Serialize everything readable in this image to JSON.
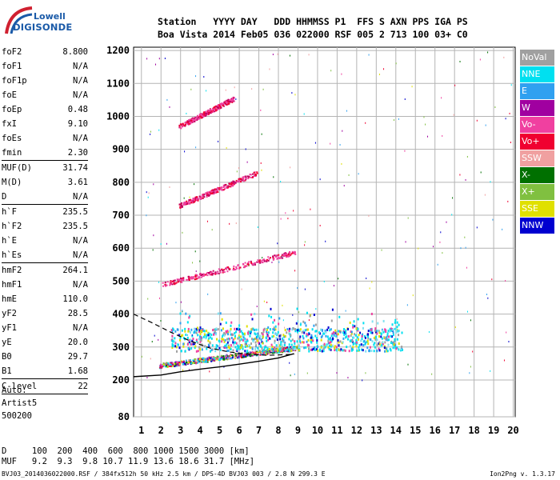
{
  "logo": {
    "line1": "Lowell",
    "line2": "DIGISONDE"
  },
  "header": {
    "line1": "Station   YYYY DAY   DDD HHMMSS P1  FFS S AXN PPS IGA PS",
    "line2": "Boa Vista 2014 Feb05 036 022000 RSF 005 2 713 100 03+ C0"
  },
  "params": [
    {
      "k": "foF2",
      "v": "8.800"
    },
    {
      "k": "foF1",
      "v": "N/A"
    },
    {
      "k": "foF1p",
      "v": "N/A"
    },
    {
      "k": "foE",
      "v": "N/A"
    },
    {
      "k": "foEp",
      "v": "0.48"
    },
    {
      "k": "fxI",
      "v": "9.10"
    },
    {
      "k": "foEs",
      "v": "N/A"
    },
    {
      "k": "fmin",
      "v": "2.30"
    },
    {
      "sep": true
    },
    {
      "k": "MUF(D)",
      "v": "31.74"
    },
    {
      "k": "M(D)",
      "v": "3.61"
    },
    {
      "k": "D",
      "v": "N/A"
    },
    {
      "sep": true
    },
    {
      "k": "h`F",
      "v": "235.5"
    },
    {
      "k": "h`F2",
      "v": "235.5"
    },
    {
      "k": "h`E",
      "v": "N/A"
    },
    {
      "k": "h`Es",
      "v": "N/A"
    },
    {
      "sep": true
    },
    {
      "k": "hmF2",
      "v": "264.1"
    },
    {
      "k": "hmF1",
      "v": "N/A"
    },
    {
      "k": "hmE",
      "v": "110.0"
    },
    {
      "k": "yF2",
      "v": "28.5"
    },
    {
      "k": "yF1",
      "v": "N/A"
    },
    {
      "k": "yE",
      "v": "20.0"
    },
    {
      "k": "B0",
      "v": "29.7"
    },
    {
      "k": "B1",
      "v": "1.68"
    },
    {
      "sep": true
    },
    {
      "k": "C-level",
      "v": "22"
    },
    {
      "sep": true
    }
  ],
  "auto": {
    "line1": "Auto:",
    "line2": "Artist5",
    "line3": "500200"
  },
  "legend": [
    {
      "label": "NoVal",
      "color": "#a0a0a0"
    },
    {
      "label": "NNE",
      "color": "#00e0f0"
    },
    {
      "label": "E",
      "color": "#30a0f0"
    },
    {
      "label": "W",
      "color": "#a000a0"
    },
    {
      "label": "Vo-",
      "color": "#f040a0"
    },
    {
      "label": "Vo+",
      "color": "#f00030"
    },
    {
      "label": "SSW",
      "color": "#f0a0a0"
    },
    {
      "label": "X-",
      "color": "#007000"
    },
    {
      "label": "X+",
      "color": "#80c040"
    },
    {
      "label": "SSE",
      "color": "#e0e000"
    },
    {
      "label": "NNW",
      "color": "#0000d0"
    }
  ],
  "bottom": {
    "line1": "D     100  200  400  600  800 1000 1500 3000 [km]",
    "line2": "MUF   9.2  9.3  9.8 10.7 11.9 13.6 18.6 31.7 [MHz]"
  },
  "footer": "BVJ03_2014036022000.RSF / 384fx512h 50 kHz 2.5 km / DPS-4D BVJ03 003 / 2.8 N 299.3 E",
  "version": "Ion2Png v. 1.3.17",
  "chart_data": {
    "type": "scatter",
    "x_ticks": [
      1,
      2,
      3,
      4,
      5,
      6,
      7,
      8,
      9,
      10,
      11,
      12,
      13,
      14,
      15,
      16,
      17,
      18,
      19,
      20
    ],
    "y_ticks": [
      80,
      200,
      300,
      400,
      500,
      600,
      700,
      800,
      900,
      1000,
      1100,
      1200
    ],
    "xlim": [
      0.6,
      20.1
    ],
    "ylim": [
      80,
      1210
    ],
    "y_scale": "linear-above-200",
    "grid": true,
    "trace_bands": [
      {
        "name": "F2 1st hop",
        "x_start": 1.9,
        "x_end": 9.0,
        "y_start": 245,
        "y_end": 300,
        "color_mix": "multi"
      },
      {
        "name": "F2 spread",
        "x_start": 2.5,
        "x_end": 14.3,
        "y_start": 290,
        "y_end": 360,
        "color_mix": "multi"
      },
      {
        "name": "F2 2nd hop",
        "x_start": 2.0,
        "x_end": 8.9,
        "y_start": 490,
        "y_end": 590,
        "color_mix": "pink-red"
      },
      {
        "name": "F2 3rd hop",
        "x_start": 2.9,
        "x_end": 6.9,
        "y_start": 730,
        "y_end": 830,
        "color_mix": "pink-red"
      },
      {
        "name": "F2 4th hop",
        "x_start": 2.9,
        "x_end": 5.7,
        "y_start": 970,
        "y_end": 1055,
        "color_mix": "pink-red"
      }
    ],
    "profile_curve": [
      [
        0.6,
        210
      ],
      [
        2,
        215
      ],
      [
        3,
        225
      ],
      [
        4,
        233
      ],
      [
        5,
        240
      ],
      [
        6,
        248
      ],
      [
        7,
        257
      ],
      [
        8,
        267
      ],
      [
        8.8,
        280
      ]
    ],
    "dashed_curve": [
      [
        0.6,
        400
      ],
      [
        1.5,
        375
      ],
      [
        2.5,
        345
      ],
      [
        3.5,
        318
      ],
      [
        4.5,
        297
      ],
      [
        5.5,
        285
      ],
      [
        6.5,
        278
      ],
      [
        7.5,
        275
      ],
      [
        8.8,
        278
      ]
    ]
  }
}
